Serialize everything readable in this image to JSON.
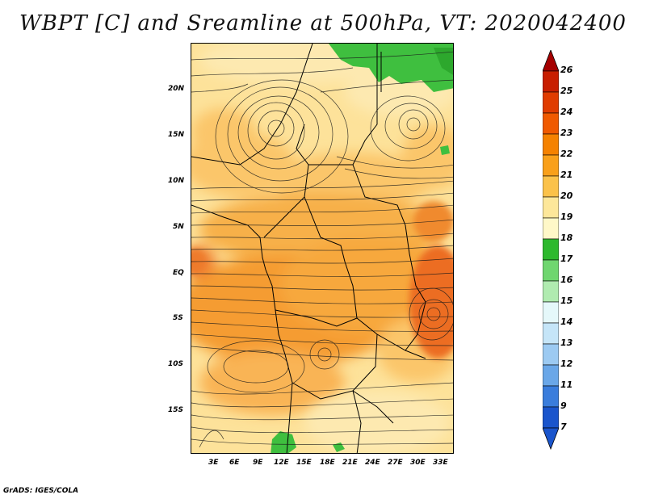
{
  "title": "WBPT [C] and Sreamline at 500hPa, VT: 2020042400",
  "credit": "GrADS: IGES/COLA",
  "lat_labels": [
    "20N",
    "15N",
    "10N",
    "5N",
    "EQ",
    "5S",
    "10S",
    "15S"
  ],
  "lon_labels": [
    "3E",
    "6E",
    "9E",
    "12E",
    "15E",
    "18E",
    "21E",
    "24E",
    "27E",
    "30E",
    "33E"
  ],
  "colorbar": {
    "labels": [
      "26",
      "25",
      "24",
      "23",
      "22",
      "21",
      "20",
      "19",
      "18",
      "17",
      "16",
      "15",
      "14",
      "13",
      "12",
      "11",
      "9",
      "7"
    ],
    "colors": [
      "#a50000",
      "#c81e00",
      "#e03c00",
      "#f05a00",
      "#f58200",
      "#f9a01a",
      "#fbc24a",
      "#fde79a",
      "#fff8c8",
      "#2db92d",
      "#6fd66f",
      "#b0ebb0",
      "#e5f8fa",
      "#c5e5f8",
      "#9ccaf2",
      "#6aa7e8",
      "#3a7ddc",
      "#1a55cc"
    ]
  }
}
